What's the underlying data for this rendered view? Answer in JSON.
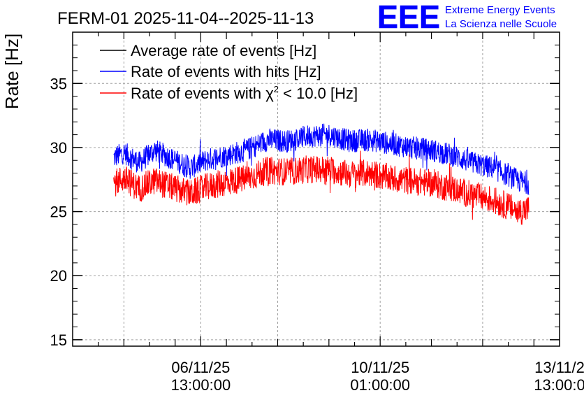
{
  "title": "FERM-01 2025-11-04--2025-11-13",
  "logo": {
    "text": "EEE",
    "line1": "Extreme Energy Events",
    "line2": "La Scienza nelle Scuole",
    "color": "#0000ff"
  },
  "colors": {
    "average": "#000000",
    "hits": "#0000ff",
    "chi2": "#ff0000",
    "grid": "#a0a0a0"
  },
  "chart_data": {
    "type": "line",
    "title": "FERM-01 2025-11-04--2025-11-13",
    "xlabel": "",
    "ylabel": "Rate [Hz]",
    "ylim": [
      14.5,
      39
    ],
    "yticks": [
      15,
      20,
      25,
      30,
      35
    ],
    "xrange_days": [
      0,
      9.5
    ],
    "xticks": [
      {
        "day": 2.5,
        "line1": "06/11/25",
        "line2": "13:00:00"
      },
      {
        "day": 6.0,
        "line1": "10/11/25",
        "line2": "01:00:00"
      },
      {
        "day": 9.5,
        "line1": "13/11/2",
        "line2": "13:00:0"
      }
    ],
    "grid": true,
    "legend_position": "top-left",
    "legend": [
      {
        "key": "average",
        "label": "Average rate of events [Hz]"
      },
      {
        "key": "hits",
        "label": "Rate of events with hits [Hz]"
      },
      {
        "key": "chi2",
        "label_pre": "Rate of events with ",
        "chi": "χ",
        "sup": "2",
        "label_post": " < 10.0 [Hz]"
      }
    ],
    "series": [
      {
        "name": "Rate of events with hits [Hz]",
        "key": "hits",
        "noise_amplitude": 0.9,
        "profile_x": [
          0.8,
          1.0,
          1.3,
          1.6,
          2.0,
          2.3,
          2.6,
          3.0,
          3.4,
          3.8,
          4.2,
          4.6,
          5.0,
          5.4,
          5.8,
          6.2,
          6.6,
          7.0,
          7.4,
          7.8,
          8.2,
          8.5,
          8.7,
          8.9
        ],
        "profile_y": [
          29.2,
          29.6,
          28.8,
          29.8,
          29.0,
          28.4,
          29.0,
          29.4,
          29.8,
          30.6,
          30.5,
          30.9,
          31.0,
          30.5,
          30.6,
          30.3,
          30.0,
          29.8,
          29.4,
          28.8,
          28.4,
          27.8,
          27.4,
          27.2
        ]
      },
      {
        "name": "Rate of events with χ2 < 10.0 [Hz]",
        "key": "chi2",
        "noise_amplitude": 1.1,
        "profile_x": [
          0.8,
          1.0,
          1.3,
          1.6,
          2.0,
          2.3,
          2.6,
          3.0,
          3.4,
          3.8,
          4.2,
          4.6,
          5.0,
          5.4,
          5.8,
          6.2,
          6.6,
          7.0,
          7.4,
          7.8,
          8.2,
          8.5,
          8.7,
          8.9
        ],
        "profile_y": [
          27.2,
          27.6,
          26.8,
          27.4,
          26.8,
          26.4,
          26.9,
          27.3,
          27.6,
          28.2,
          28.1,
          28.3,
          28.3,
          27.9,
          28.0,
          27.6,
          27.4,
          27.2,
          26.8,
          26.3,
          25.9,
          25.4,
          25.0,
          25.2
        ]
      }
    ]
  }
}
